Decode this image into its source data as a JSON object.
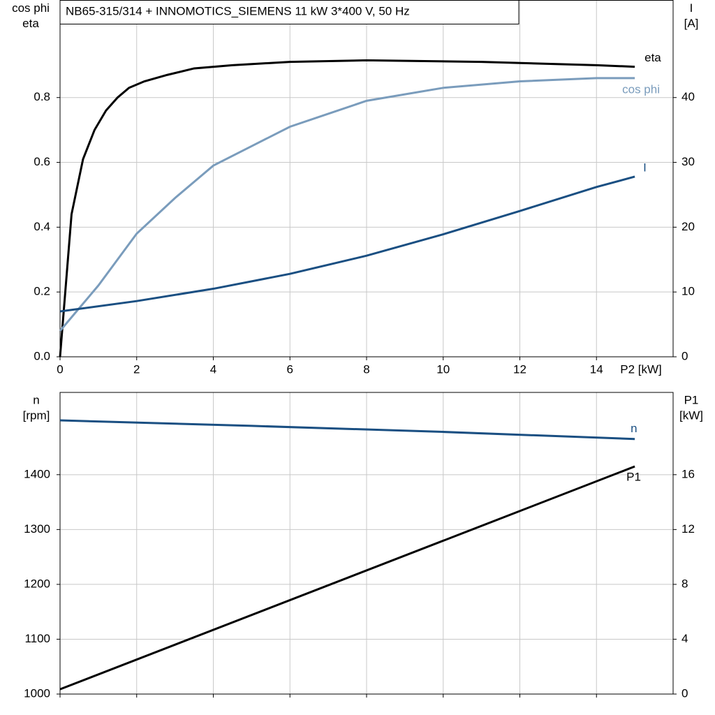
{
  "chart_data": [
    {
      "type": "line",
      "title": "NB65-315/314 + INNOMOTICS_SIEMENS   11 kW   3*400 V, 50 Hz",
      "ylabel": [
        "cos phi",
        "eta"
      ],
      "y2label": [
        "I",
        "[A]"
      ],
      "xlabel": "P2 [kW]",
      "xlim": [
        0,
        16
      ],
      "xticks": [
        0,
        2,
        4,
        6,
        8,
        10,
        12,
        14
      ],
      "show_xtick_labels": true,
      "ylim": [
        0,
        1.1
      ],
      "yticks": [
        {
          "value": 0,
          "label": "0.0"
        },
        0.2,
        0.4,
        0.6,
        0.8
      ],
      "y2lim": [
        0,
        55
      ],
      "y2ticks": [
        0,
        10,
        20,
        30,
        40
      ],
      "grid": true,
      "series": [
        {
          "name": "eta",
          "color": "#000000",
          "x": [
            0,
            0.3,
            0.6,
            0.9,
            1.2,
            1.5,
            1.8,
            2.2,
            2.8,
            3.5,
            4.5,
            6,
            8,
            11,
            14,
            15
          ],
          "values": [
            0,
            0.44,
            0.61,
            0.7,
            0.76,
            0.8,
            0.83,
            0.85,
            0.87,
            0.89,
            0.9,
            0.91,
            0.915,
            0.91,
            0.9,
            0.895
          ]
        },
        {
          "name": "cos phi",
          "color": "#7a9cbc",
          "x": [
            0,
            0.5,
            1,
            1.5,
            2,
            3,
            4,
            5,
            6,
            7,
            8,
            10,
            12,
            14,
            15
          ],
          "values": [
            0.08,
            0.15,
            0.22,
            0.3,
            0.38,
            0.49,
            0.59,
            0.65,
            0.71,
            0.75,
            0.79,
            0.83,
            0.85,
            0.86,
            0.86
          ]
        },
        {
          "name": "I",
          "color": "#1a4f82",
          "axis": "y2",
          "x": [
            0,
            2,
            4,
            6,
            8,
            10,
            12,
            14,
            15
          ],
          "values": [
            7.0,
            8.6,
            10.5,
            12.8,
            15.6,
            18.9,
            22.5,
            26.2,
            27.8
          ]
        }
      ]
    },
    {
      "type": "line",
      "ylabel": [
        "n",
        "[rpm]"
      ],
      "y2label": [
        "P1",
        "[kW]"
      ],
      "xlim": [
        0,
        16
      ],
      "xticks": [
        0,
        2,
        4,
        6,
        8,
        10,
        12,
        14
      ],
      "show_xtick_labels": false,
      "ylim": [
        1000,
        1550
      ],
      "yticks": [
        1000,
        1100,
        1200,
        1300,
        1400
      ],
      "y2lim": [
        0,
        22
      ],
      "y2ticks": [
        0,
        4,
        8,
        12,
        16
      ],
      "grid": true,
      "series": [
        {
          "name": "n",
          "color": "#1a4f82",
          "x": [
            0,
            5,
            10,
            15
          ],
          "values": [
            1499,
            1489,
            1478,
            1465
          ]
        },
        {
          "name": "P1",
          "color": "#000000",
          "axis": "y2",
          "x": [
            0,
            15
          ],
          "values": [
            0.35,
            16.6
          ]
        }
      ]
    }
  ]
}
